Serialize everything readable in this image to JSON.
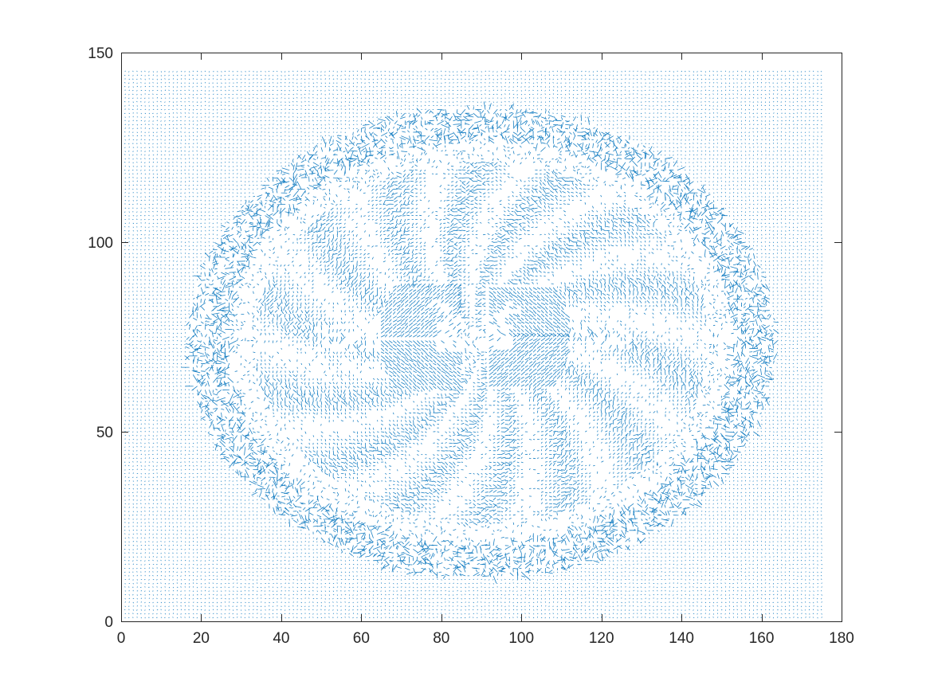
{
  "chart_data": {
    "type": "quiver",
    "title": "",
    "xlabel": "",
    "ylabel": "",
    "xlim": [
      0,
      180
    ],
    "ylim": [
      0,
      150
    ],
    "xticks": [
      0,
      20,
      40,
      60,
      80,
      100,
      120,
      140,
      160,
      180
    ],
    "yticks": [
      0,
      50,
      100,
      150
    ],
    "xtick_labels": [
      "0",
      "20",
      "40",
      "60",
      "80",
      "100",
      "120",
      "140",
      "160",
      "180"
    ],
    "ytick_labels": [
      "0",
      "50",
      "100",
      "150"
    ],
    "grid": false,
    "box": true,
    "series_color": "#0072BD",
    "field": {
      "grid_x_range": [
        1,
        175
      ],
      "grid_y_range": [
        1,
        145
      ],
      "grid_step": 1,
      "brain_center": [
        90,
        73.5
      ],
      "skull_outer_radii": [
        72,
        61
      ],
      "skull_inner_radii": [
        63,
        53
      ],
      "ventricle_center": [
        88,
        75
      ],
      "description_of_structure": [
        "scalp/skull ring with large randomly oriented vectors",
        "cortical folds with medium vectors",
        "butterfly-shaped ventricle region at the center with dense diagonal vectors",
        "near-zero dots outside the head"
      ]
    }
  }
}
